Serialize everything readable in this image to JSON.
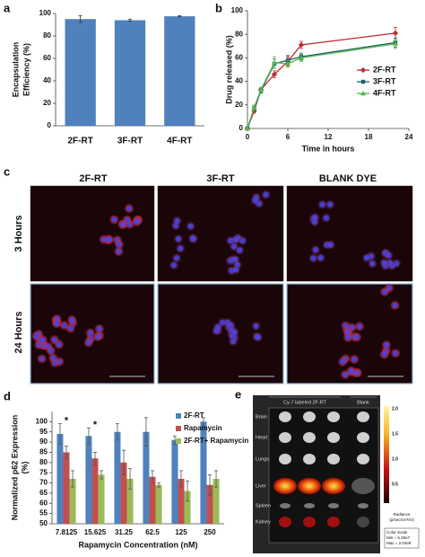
{
  "panel_labels": [
    "a",
    "b",
    "c",
    "d",
    "e"
  ],
  "chart_data": [
    {
      "type": "bar",
      "ylabel": [
        "Encapsulation",
        "Efficiency (%)"
      ],
      "categories": [
        "2F-RT",
        "3F-RT",
        "4F-RT"
      ],
      "values": [
        95,
        94,
        97.5
      ],
      "errors": [
        3,
        1,
        0.5
      ],
      "color": "#4f81bd",
      "ylim": [
        0,
        100
      ],
      "yticks": [
        0,
        20,
        40,
        60,
        80,
        100
      ]
    },
    {
      "type": "line",
      "ylabel": [
        "Drug released (%)"
      ],
      "xlabel": "Time in hours",
      "x": [
        0,
        1,
        2,
        4,
        6,
        8,
        22
      ],
      "xlim": [
        0,
        24
      ],
      "xticks": [
        0,
        6,
        12,
        18,
        24
      ],
      "ylim": [
        0,
        100
      ],
      "yticks": [
        0,
        20,
        40,
        60,
        80,
        100
      ],
      "legend": "right",
      "series": [
        {
          "name": "2F-RT",
          "color": "#c0282e",
          "values": [
            0,
            15,
            33,
            46,
            57,
            71,
            81
          ],
          "errors": [
            0,
            2,
            2,
            3,
            4,
            3,
            5
          ]
        },
        {
          "name": "3F-RT",
          "color": "#1f5f6e",
          "values": [
            0,
            17,
            32,
            55,
            58,
            61,
            73
          ],
          "errors": [
            0,
            2,
            2,
            4,
            4,
            3,
            4
          ]
        },
        {
          "name": "4F-RT",
          "color": "#55b84a",
          "values": [
            0,
            18,
            33,
            56,
            55,
            60,
            72
          ],
          "errors": [
            0,
            2,
            2,
            5,
            3,
            3,
            4
          ]
        }
      ]
    },
    {
      "type": "bar",
      "ylabel": [
        "Normalized p62 Expression",
        "(%)"
      ],
      "xlabel": "Rapamycin Concentration (nM)",
      "categories": [
        "7.8125",
        "15.625",
        "31.25",
        "62.5",
        "125",
        "250"
      ],
      "ylim": [
        50,
        105
      ],
      "yticks": [
        50,
        55,
        60,
        65,
        70,
        75,
        80,
        85,
        90,
        95,
        100
      ],
      "legend": "upper right",
      "series": [
        {
          "name": "2F-RT",
          "color": "#4f81bd",
          "values": [
            94,
            93,
            95,
            95,
            91,
            100
          ],
          "errors": [
            5,
            4,
            4,
            7,
            2,
            2
          ]
        },
        {
          "name": "Rapamycin",
          "color": "#c0504d",
          "values": [
            85,
            82,
            80,
            73,
            72,
            69
          ],
          "errors": [
            3,
            3,
            6,
            3,
            4,
            5
          ]
        },
        {
          "name": "2F-RT+ Rapamycin",
          "color": "#9bbb59",
          "values": [
            72,
            74,
            72,
            69,
            66,
            72
          ],
          "errors": [
            4,
            2,
            5,
            1,
            5,
            4
          ]
        }
      ],
      "annotations": [
        {
          "text": "*",
          "x": "7.8125"
        },
        {
          "text": "*",
          "x": "15.625"
        }
      ]
    }
  ],
  "microscopy": {
    "columns": [
      "2F-RT",
      "3F-RT",
      "BLANK DYE"
    ],
    "rows": [
      "3 Hours",
      "24 Hours"
    ]
  },
  "imaging": {
    "groups": [
      "Cy-7 labeled 2F-RT",
      "Blank"
    ],
    "organs": [
      "Brain",
      "Heart",
      "Lungs",
      "Liver",
      "Spleen",
      "Kidney"
    ],
    "colorbar_ticks": [
      "2.0",
      "1.5",
      "1.0",
      "0.5"
    ],
    "colorbar_label": [
      "Radiance",
      "(p/sec/cm²/sr)"
    ],
    "scale_box": [
      "Color Scale",
      "Min = 5.26e7",
      "Max = 2.03e9"
    ]
  }
}
